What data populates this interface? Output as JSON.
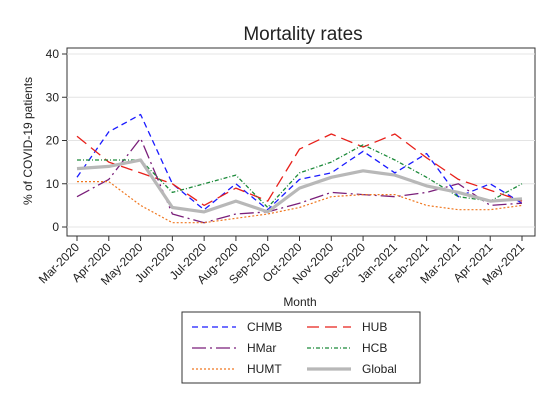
{
  "chart_data": {
    "type": "line",
    "title": "Mortality rates",
    "xlabel": "Month",
    "ylabel": "% of COVID-19 patients",
    "ylim": [
      0,
      40
    ],
    "yticks": [
      0,
      10,
      20,
      30,
      40
    ],
    "grid": true,
    "legend_position": "bottom",
    "categories": [
      "Mar-2020",
      "Apr-2020",
      "May-2020",
      "Jun-2020",
      "Jul-2020",
      "Aug-2020",
      "Sep-2020",
      "Oct-2020",
      "Nov-2020",
      "Dec-2020",
      "Jan-2021",
      "Feb-2021",
      "Mar-2021",
      "Apr-2021",
      "May-2021"
    ],
    "series": [
      {
        "name": "CHMB",
        "color": "#1a1aff",
        "dash": "6 4",
        "width": 1.3,
        "values": [
          11.5,
          22,
          26,
          10,
          4,
          10,
          4,
          11,
          12.5,
          17.5,
          12.5,
          17,
          7,
          10,
          5.5
        ]
      },
      {
        "name": "HUB",
        "color": "#e8201a",
        "dash": "12 6",
        "width": 1.3,
        "values": [
          21,
          15,
          12.5,
          10,
          5,
          9,
          6,
          18,
          21.5,
          18.5,
          21.5,
          16,
          11,
          8.5,
          6
        ]
      },
      {
        "name": "HMar",
        "color": "#7a1f7a",
        "dash": "14 4 2 4",
        "width": 1.3,
        "values": [
          7,
          11,
          20.5,
          3,
          1,
          3,
          3.5,
          5.5,
          8,
          7.5,
          7,
          8,
          10,
          5,
          5.5
        ]
      },
      {
        "name": "HCB",
        "color": "#1c8a3a",
        "dash": "4 2 1 2",
        "width": 1.3,
        "values": [
          15.5,
          15.5,
          15.5,
          8,
          10,
          12,
          4.5,
          12.5,
          15,
          19,
          15.5,
          11.5,
          7,
          6,
          10
        ]
      },
      {
        "name": "HUMT",
        "color": "#f07820",
        "dash": "2 2",
        "width": 1.2,
        "values": [
          10.5,
          10.5,
          5,
          1,
          1,
          2,
          3,
          4.5,
          7,
          7.5,
          7.5,
          5,
          4,
          4,
          5
        ]
      },
      {
        "name": "Global",
        "color": "#b8b8b8",
        "dash": "",
        "width": 3.2,
        "values": [
          13.5,
          14,
          15.5,
          4.5,
          3.5,
          6,
          3.5,
          9,
          11.5,
          13,
          12,
          9.5,
          8,
          6,
          6.5
        ]
      }
    ]
  }
}
